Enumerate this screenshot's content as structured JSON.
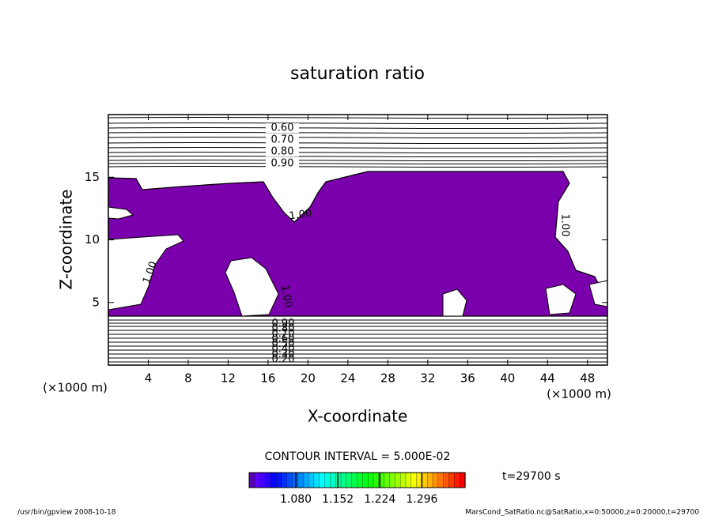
{
  "chart_data": {
    "type": "contour",
    "title": "saturation ratio",
    "x_label": "X-coordinate",
    "y_label": "Z-coordinate",
    "x_unit": "(×1000 m)",
    "y_unit": "(×1000 m)",
    "xlim": [
      0,
      50
    ],
    "ylim": [
      0,
      20
    ],
    "xticks": [
      4,
      8,
      12,
      16,
      20,
      24,
      28,
      32,
      36,
      40,
      44,
      48
    ],
    "yticks": [
      5,
      10,
      15
    ],
    "fill_color": "#7b00ad",
    "contour_labels_top": [
      "0.60",
      "0.70",
      "0.80",
      "0.90"
    ],
    "contour_labels_mid": [
      "1.00",
      "1.00",
      "1.00",
      "1.00"
    ],
    "contour_labels_bottom": [
      "0.20",
      "0.30",
      "0.40",
      "0.50",
      "0.60",
      "0.70",
      "0.80",
      "0.90"
    ],
    "contour_interval": "CONTOUR INTERVAL = 5.000E-02",
    "time_label": "t=29700 s",
    "colorbar_lim": [
      1.0,
      1.37
    ],
    "colorbar_ticks": [
      {
        "value": 1.08,
        "label": "1.080"
      },
      {
        "value": 1.152,
        "label": "1.152"
      },
      {
        "value": 1.224,
        "label": "1.224"
      },
      {
        "value": 1.296,
        "label": "1.296"
      }
    ],
    "footer_left": "/usr/bin/gpview  2008-10-18",
    "footer_right": "MarsCond_SatRatio.nc@SatRatio,x=0:50000,z=0:20000,t=29700"
  }
}
